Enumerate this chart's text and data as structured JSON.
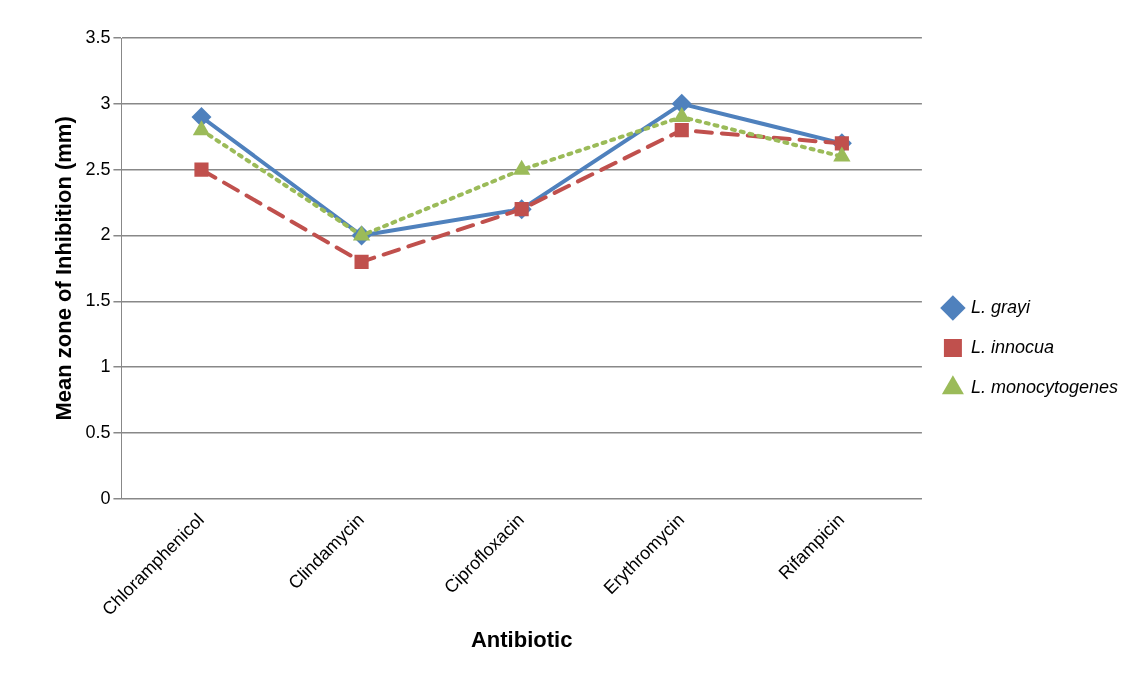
{
  "chart_data": {
    "type": "line",
    "xlabel": "Antibiotic",
    "ylabel": "Mean zone of Inhibition (mm)",
    "categories": [
      "Chloramphenicol",
      "Clindamycin",
      "Ciprofloxacin",
      "Erythromycin",
      "Rifampicin"
    ],
    "series": [
      {
        "name": "L. grayi",
        "color": "#4f81bd",
        "values": [
          2.9,
          2.0,
          2.2,
          3.0,
          2.7
        ],
        "marker": "diamond",
        "line_style": "solid"
      },
      {
        "name": "L. innocua",
        "color": "#c0504d",
        "values": [
          2.5,
          1.8,
          2.2,
          2.8,
          2.7
        ],
        "marker": "square",
        "line_style": "dashed"
      },
      {
        "name": "L. monocytogenes",
        "color": "#9bbb59",
        "values": [
          2.8,
          2.0,
          2.5,
          2.9,
          2.6
        ],
        "marker": "triangle",
        "line_style": "dotted"
      }
    ],
    "ylim": [
      0,
      3.5
    ],
    "yticks": [
      0,
      0.5,
      1,
      1.5,
      2,
      2.5,
      3,
      3.5
    ],
    "grid": "y",
    "legend": "right"
  }
}
